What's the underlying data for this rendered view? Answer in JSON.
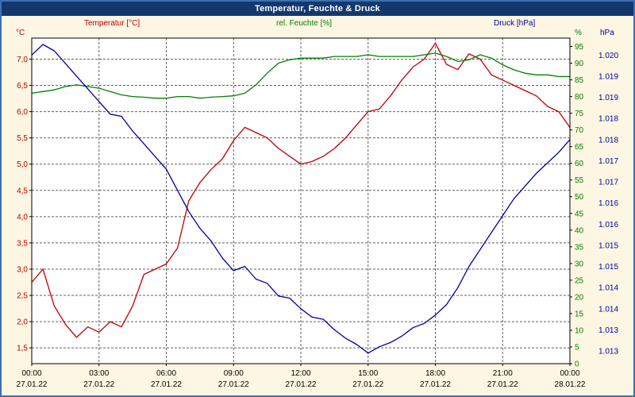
{
  "window": {
    "title": "Temperatur, Feuchte & Druck"
  },
  "header": {
    "temp_label": "Temperatur [°C]",
    "humidity_label": "rel. Feuchte [%]",
    "pressure_label": "Druck [hPa]",
    "temp_unit": "°C",
    "humidity_unit": "%",
    "pressure_unit": "hPa"
  },
  "colors": {
    "background": "#fcf6e2",
    "frame": "#3f6fae",
    "title_bar": "#12386e",
    "title_text": "#ffffff",
    "plot_bg": "#ffffff",
    "grid": "#606060",
    "plot_border": "#000000",
    "axis_text": "#000000",
    "temp": "#c00000",
    "humidity": "#008000",
    "pressure": "#0000a0"
  },
  "chart_data": {
    "type": "line",
    "title": "Temperatur, Feuchte & Druck",
    "x_axis": {
      "hours_span": 24,
      "tick_every_hours": 3,
      "sample_interval_hours": 0.5,
      "ticks": [
        {
          "time": "00:00",
          "date": "27.01.22"
        },
        {
          "time": "03:00",
          "date": "27.01.22"
        },
        {
          "time": "06:00",
          "date": "27.01.22"
        },
        {
          "time": "09:00",
          "date": "27.01.22"
        },
        {
          "time": "12:00",
          "date": "27.01.22"
        },
        {
          "time": "15:00",
          "date": "27.01.22"
        },
        {
          "time": "18:00",
          "date": "27.01.22"
        },
        {
          "time": "21:00",
          "date": "27.01.22"
        },
        {
          "time": "00:00",
          "date": "28.01.22"
        }
      ]
    },
    "axes": {
      "temp": {
        "side": "left",
        "unit": "°C",
        "min": 1.2,
        "max": 7.4,
        "tick_start": 1.5,
        "tick_end": 7.0,
        "tick_step": 0.5,
        "decimal_comma": true,
        "color": "#c00000"
      },
      "humidity": {
        "side": "right-inner",
        "unit": "%",
        "min": 0,
        "max": 97.5,
        "tick_start": 0,
        "tick_end": 95,
        "tick_step": 5,
        "color": "#008000"
      },
      "pressure": {
        "side": "right-outer",
        "unit": "hPa",
        "min": 1012.7,
        "max": 1020.4,
        "tick_start": 1013,
        "tick_end": 1020,
        "tick_step": 0.5,
        "thousands_dot": true,
        "color": "#0000a0"
      }
    },
    "series": [
      {
        "id": "temp",
        "name": "Temperatur [°C]",
        "axis": "temp",
        "color": "#c00000",
        "values": [
          2.75,
          3.0,
          2.3,
          1.95,
          1.7,
          1.9,
          1.8,
          2.0,
          1.9,
          2.3,
          2.9,
          3.0,
          3.1,
          3.4,
          4.3,
          4.65,
          4.9,
          5.1,
          5.45,
          5.7,
          5.6,
          5.5,
          5.3,
          5.15,
          5.0,
          5.05,
          5.15,
          5.3,
          5.5,
          5.75,
          6.0,
          6.05,
          6.3,
          6.6,
          6.85,
          7.0,
          7.3,
          6.9,
          6.8,
          7.1,
          7.0,
          6.7,
          6.6,
          6.5,
          6.4,
          6.3,
          6.1,
          6.0,
          5.7
        ]
      },
      {
        "id": "humidity",
        "name": "rel. Feuchte [%]",
        "axis": "humidity",
        "color": "#008000",
        "values": [
          81,
          81.5,
          82,
          83,
          83.5,
          83,
          82.5,
          81.5,
          80.5,
          80,
          79.8,
          79.5,
          79.5,
          80,
          80,
          79.5,
          79.8,
          80,
          80.2,
          81,
          83.5,
          87,
          90,
          91,
          91.5,
          91.5,
          91.5,
          92,
          92,
          92,
          92.5,
          92,
          92,
          92,
          92,
          92.5,
          93,
          92,
          90.5,
          91,
          92.5,
          91.5,
          89.5,
          88,
          87,
          86.5,
          86.5,
          86,
          86
        ]
      },
      {
        "id": "pressure",
        "name": "Druck [hPa]",
        "axis": "pressure",
        "color": "#0000a0",
        "values": [
          1020.0,
          1020.25,
          1020.1,
          1019.8,
          1019.5,
          1019.2,
          1018.9,
          1018.6,
          1018.55,
          1018.2,
          1017.9,
          1017.6,
          1017.3,
          1016.8,
          1016.3,
          1015.9,
          1015.6,
          1015.2,
          1014.9,
          1015.0,
          1014.7,
          1014.6,
          1014.3,
          1014.25,
          1014.0,
          1013.8,
          1013.75,
          1013.5,
          1013.3,
          1013.15,
          1012.95,
          1013.1,
          1013.2,
          1013.35,
          1013.55,
          1013.65,
          1013.85,
          1014.1,
          1014.5,
          1015.0,
          1015.4,
          1015.8,
          1016.2,
          1016.6,
          1016.9,
          1017.2,
          1017.45,
          1017.7,
          1018.0
        ]
      }
    ]
  }
}
